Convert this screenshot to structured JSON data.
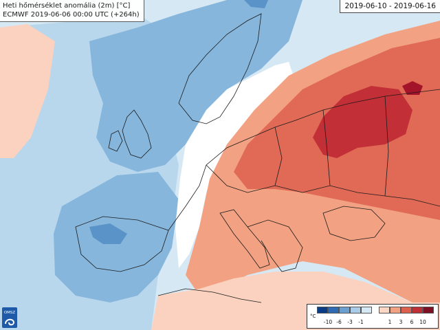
{
  "title": {
    "line1": "Heti hőmérséklet anomália (2m) [°C]",
    "line2": "ECMWF 2019-06-06 00:00 UTC (+264h)"
  },
  "date_range": "2019-06-10 - 2019-06-16",
  "logo_text": "OMSZ",
  "legend": {
    "unit": "°C",
    "cold_swatches": [
      "#0b3d86",
      "#2f6bb2",
      "#6b9fd0",
      "#a9cce8",
      "#d6e8f3"
    ],
    "cold_ticks": [
      "-10",
      "-6",
      "-3",
      "-1"
    ],
    "warm_swatches": [
      "#fbd7c4",
      "#f2a282",
      "#dd5f4e",
      "#be2f36",
      "#7d1023"
    ],
    "warm_ticks": [
      "1",
      "3",
      "6",
      "10"
    ]
  },
  "colors": {
    "sea_neutral": "#d6e8f3",
    "land_neutral": "#ffffff",
    "cold_light": "#b8d7ec",
    "cold_mid": "#86b6dc",
    "cold_strong": "#5a93c8",
    "cold_deep": "#2f6bb2",
    "warm_light": "#fbd2bf",
    "warm_mid": "#f2a282",
    "warm_strong": "#e06a55",
    "warm_deep": "#c22f36",
    "warm_extreme": "#a3132a",
    "border": "#1a1a1a"
  }
}
